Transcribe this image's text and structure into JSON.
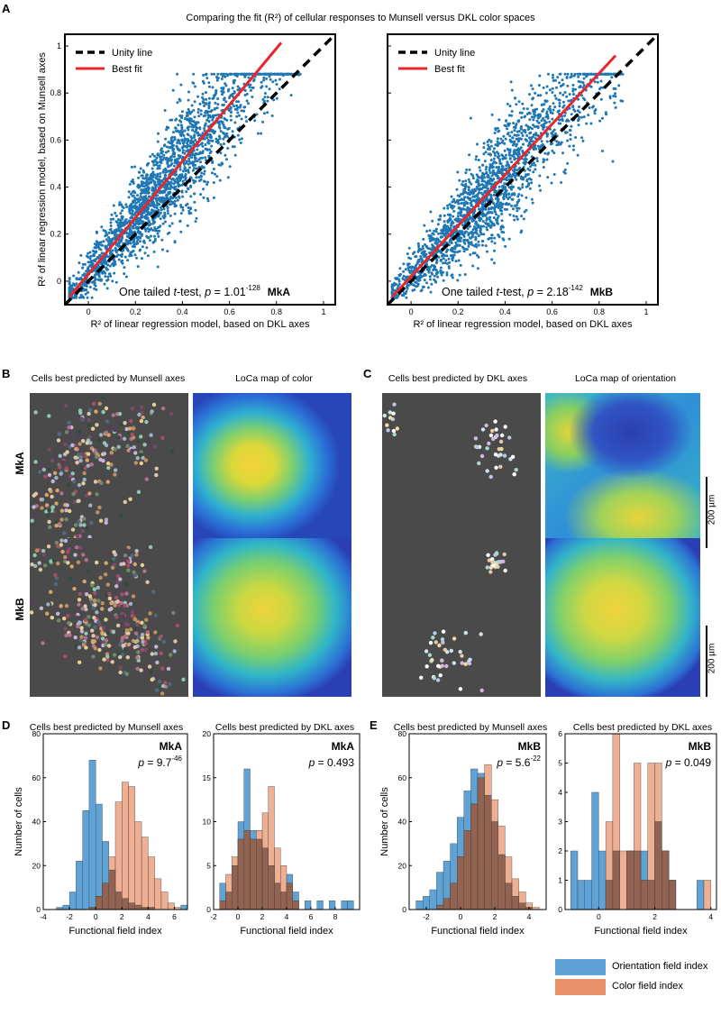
{
  "figure": {
    "panel_letters": {
      "A": "A",
      "B": "B",
      "C": "C",
      "D": "D",
      "E": "E"
    },
    "title_A": "Comparing the fit (R²) of cellular responses to Munsell versus DKL color spaces"
  },
  "chart_data": [
    {
      "type": "scatter",
      "panel": "A-left",
      "monkey": "MkA",
      "title": "",
      "xlabel": "R² of linear regression model, based on DKL axes",
      "ylabel": "R² of linear regression model, based on Munsell axes",
      "xlim": [
        -0.1,
        1.05
      ],
      "ylim": [
        -0.1,
        1.05
      ],
      "xticks": [
        "0",
        "0.2",
        "0.4",
        "0.6",
        "0.8",
        "1"
      ],
      "yticks": [
        "0",
        "0.2",
        "0.4",
        "0.6",
        "0.8",
        "1"
      ],
      "legend": [
        {
          "name": "Unity line",
          "style": "dashed",
          "color": "#000000"
        },
        {
          "name": "Best fit",
          "style": "solid",
          "color": "#e8262b"
        }
      ],
      "legend_position": "top-left",
      "best_fit": {
        "slope": 1.2,
        "intercept": 0.03
      },
      "point_color": "#1f77b4",
      "annotation": {
        "prefix": "One tailed ",
        "italic_t": "t",
        "mid": "-test, ",
        "italic_p": "p",
        "eq": " = 1.01",
        "exp": "-128",
        "label": "MkA"
      },
      "cloud": {
        "n": 2200,
        "x_range": [
          -0.08,
          0.9
        ],
        "note": "dense cloud of cells"
      }
    },
    {
      "type": "scatter",
      "panel": "A-right",
      "monkey": "MkB",
      "title": "",
      "xlabel": "R² of linear regression model, based on DKL axes",
      "ylabel": "",
      "xlim": [
        -0.1,
        1.05
      ],
      "ylim": [
        -0.1,
        1.05
      ],
      "xticks": [
        "0",
        "0.2",
        "0.4",
        "0.6",
        "0.8",
        "1"
      ],
      "yticks": [
        "0",
        "0.2",
        "0.4",
        "0.6",
        "0.8",
        "1"
      ],
      "legend": [
        {
          "name": "Unity line",
          "style": "dashed",
          "color": "#000000"
        },
        {
          "name": "Best fit",
          "style": "solid",
          "color": "#e8262b"
        }
      ],
      "legend_position": "top-left",
      "best_fit": {
        "slope": 1.08,
        "intercept": 0.02
      },
      "point_color": "#1f77b4",
      "annotation": {
        "prefix": "One tailed ",
        "italic_t": "t",
        "mid": "-test, ",
        "italic_p": "p",
        "eq": " = 2.18",
        "exp": "-142",
        "label": "MkB"
      },
      "cloud": {
        "n": 2000,
        "x_range": [
          -0.08,
          0.9
        ],
        "note": "dense cloud of cells"
      }
    },
    {
      "type": "bar",
      "panel": "D-left",
      "title": "Cells best predicted by Munsell axes",
      "monkey": "MkA",
      "xlabel": "Functional field index",
      "ylabel": "Number of cells",
      "xlim": [
        -4,
        7
      ],
      "ylim": [
        0,
        80
      ],
      "xticks": [
        "-4",
        "-2",
        "0",
        "2",
        "4",
        "6"
      ],
      "yticks": [
        "0",
        "20",
        "40",
        "60",
        "80"
      ],
      "bin_width": 0.5,
      "p_text": {
        "italic_p": "p",
        "eq": " = 9.7",
        "exp": "-46"
      },
      "series": [
        {
          "name": "Orientation field index",
          "color": "#5fa2d6",
          "bins": [
            -3.5,
            -3,
            -2.5,
            -2,
            -1.5,
            -1,
            -0.5,
            0,
            0.5,
            1,
            1.5,
            2,
            2.5,
            3,
            3.5,
            4,
            4.5,
            5,
            5.5,
            6,
            6.5
          ],
          "values": [
            0,
            1,
            2,
            8,
            22,
            45,
            68,
            48,
            31,
            18,
            8,
            5,
            3,
            2,
            1,
            1,
            0,
            0,
            0,
            0,
            2
          ]
        },
        {
          "name": "Color field index",
          "color": "#e8906a",
          "bins": [
            -3.5,
            -3,
            -2.5,
            -2,
            -1.5,
            -1,
            -0.5,
            0,
            0.5,
            1,
            1.5,
            2,
            2.5,
            3,
            3.5,
            4,
            4.5,
            5,
            5.5,
            6,
            6.5
          ],
          "values": [
            0,
            0,
            0,
            0,
            0,
            0,
            1,
            6,
            12,
            24,
            49,
            58,
            56,
            40,
            33,
            24,
            14,
            8,
            3,
            1,
            0
          ]
        }
      ]
    },
    {
      "type": "bar",
      "panel": "D-right",
      "title": "Cells best predicted by DKL axes",
      "monkey": "MkA",
      "xlabel": "Functional field index",
      "ylabel": "",
      "xlim": [
        -2,
        10
      ],
      "ylim": [
        0,
        20
      ],
      "xticks": [
        "-2",
        "0",
        "2",
        "4",
        "6",
        "8"
      ],
      "yticks": [
        "0",
        "5",
        "10",
        "15",
        "20"
      ],
      "bin_width": 0.5,
      "p_text": {
        "italic_p": "p",
        "eq": " = 0.493",
        "exp": ""
      },
      "series": [
        {
          "name": "Orientation field index",
          "color": "#5fa2d6",
          "bins": [
            -1.5,
            -1,
            -0.5,
            0,
            0.5,
            1,
            1.5,
            2,
            2.5,
            3,
            3.5,
            4,
            4.5,
            5,
            5.5,
            6,
            6.5,
            7,
            7.5,
            8,
            8.5,
            9
          ],
          "values": [
            3,
            2,
            5,
            10,
            16,
            9,
            8,
            7,
            5,
            3,
            2,
            4,
            2,
            0,
            1,
            0,
            1,
            0,
            1,
            0,
            1,
            1
          ]
        },
        {
          "name": "Color field index",
          "color": "#e8906a",
          "bins": [
            -1.5,
            -1,
            -0.5,
            0,
            0.5,
            1,
            1.5,
            2,
            2.5,
            3,
            3.5,
            4,
            4.5,
            5,
            5.5,
            6,
            6.5,
            7,
            7.5,
            8,
            8.5,
            9
          ],
          "values": [
            1,
            4,
            6,
            8,
            9,
            8,
            9,
            11,
            14,
            7,
            5,
            3,
            1,
            0,
            0,
            0,
            0,
            0,
            0,
            0,
            0,
            0
          ]
        }
      ]
    },
    {
      "type": "bar",
      "panel": "E-left",
      "title": "Cells best predicted by Munsell axes",
      "monkey": "MkB",
      "xlabel": "Functional field index",
      "ylabel": "Number of cells",
      "xlim": [
        -3,
        5
      ],
      "ylim": [
        0,
        80
      ],
      "xticks": [
        "-2",
        "0",
        "2",
        "4"
      ],
      "yticks": [
        "0",
        "20",
        "40",
        "60",
        "80"
      ],
      "bin_width": 0.4,
      "p_text": {
        "italic_p": "p",
        "eq": " = 5.6",
        "exp": "-22"
      },
      "series": [
        {
          "name": "Orientation field index",
          "color": "#5fa2d6",
          "bins": [
            -2.6,
            -2.2,
            -1.8,
            -1.4,
            -1,
            -0.6,
            -0.2,
            0.2,
            0.6,
            1,
            1.4,
            1.8,
            2.2,
            2.6,
            3,
            3.4,
            3.8,
            4.2
          ],
          "values": [
            4,
            6,
            9,
            17,
            22,
            30,
            42,
            54,
            64,
            62,
            52,
            40,
            25,
            12,
            6,
            3,
            1,
            0
          ]
        },
        {
          "name": "Color field index",
          "color": "#e8906a",
          "bins": [
            -2.6,
            -2.2,
            -1.8,
            -1.4,
            -1,
            -0.6,
            -0.2,
            0.2,
            0.6,
            1,
            1.4,
            1.8,
            2.2,
            2.6,
            3,
            3.4,
            3.8,
            4.2
          ],
          "values": [
            0,
            0,
            0,
            2,
            5,
            12,
            24,
            36,
            48,
            60,
            66,
            50,
            38,
            24,
            14,
            8,
            3,
            1
          ]
        }
      ]
    },
    {
      "type": "bar",
      "panel": "E-right",
      "title": "Cells best predicted by DKL axes",
      "monkey": "MkB",
      "xlabel": "Functional field index",
      "ylabel": "",
      "xlim": [
        -1.2,
        4.2
      ],
      "ylim": [
        0,
        6
      ],
      "xticks": [
        "0",
        "2",
        "4"
      ],
      "yticks": [
        "0",
        "1",
        "2",
        "3",
        "4",
        "5",
        "6"
      ],
      "bin_width": 0.25,
      "p_text": {
        "italic_p": "p",
        "eq": " = 0.049",
        "exp": ""
      },
      "series": [
        {
          "name": "Orientation field index",
          "color": "#5fa2d6",
          "bins": [
            -1,
            -0.75,
            -0.5,
            -0.25,
            0,
            0.25,
            0.5,
            0.75,
            1,
            1.25,
            1.5,
            1.75,
            2,
            2.25,
            2.5,
            2.75,
            3,
            3.25,
            3.5,
            3.75
          ],
          "values": [
            2,
            1,
            1,
            4,
            2,
            1,
            2,
            0,
            2,
            2,
            2,
            1,
            3,
            2,
            1,
            0,
            0,
            0,
            1,
            0
          ]
        },
        {
          "name": "Color field index",
          "color": "#e8906a",
          "bins": [
            -1,
            -0.75,
            -0.5,
            -0.25,
            0,
            0.25,
            0.5,
            0.75,
            1,
            1.25,
            1.5,
            1.75,
            2,
            2.25,
            2.5,
            2.75,
            3,
            3.25,
            3.5,
            3.75
          ],
          "values": [
            0,
            0,
            0,
            0,
            0,
            3,
            6,
            2,
            2,
            5,
            1,
            5,
            5,
            2,
            1,
            0,
            0,
            0,
            0,
            1
          ]
        }
      ]
    }
  ],
  "panel_B": {
    "col1_title": "Cells best predicted by Munsell axes",
    "col2_title": "LoCa map of color",
    "row1_label": "MkA",
    "row2_label": "MkB"
  },
  "panel_C": {
    "col1_title": "Cells best predicted by DKL axes",
    "col2_title": "LoCa map of orientation",
    "scale_label": "200 µm"
  },
  "legend_E": {
    "orientation": "Orientation field index",
    "color": "Color field index",
    "orientation_color": "#5fa2d6",
    "color_color": "#e8906a"
  }
}
